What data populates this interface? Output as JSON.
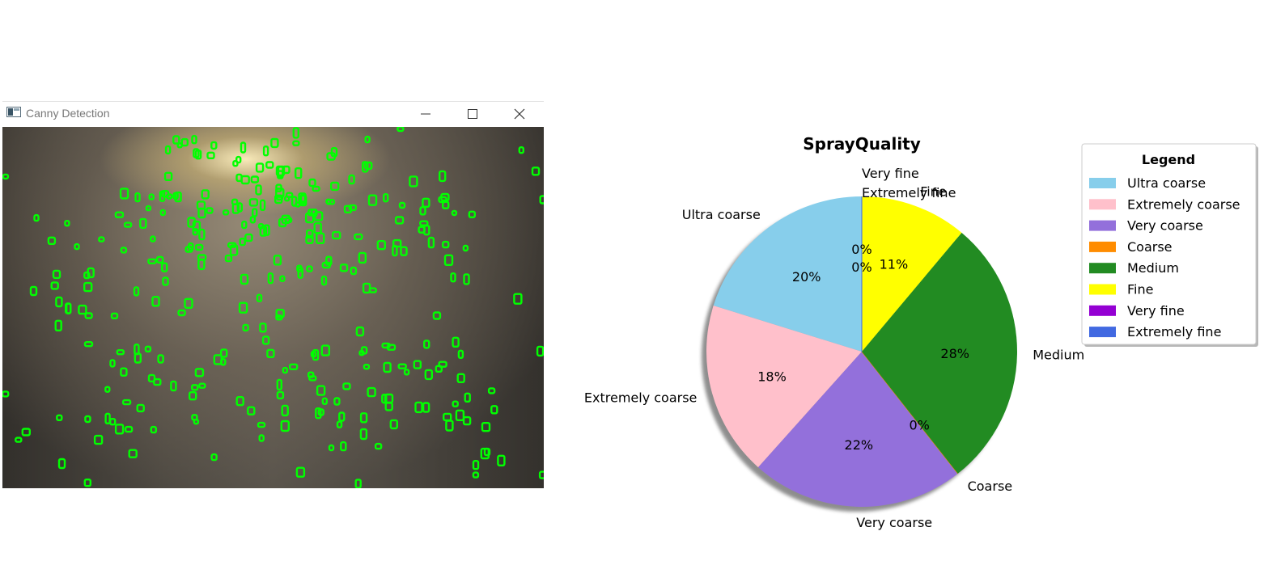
{
  "window": {
    "title": "Canny Detection",
    "minimize_icon": "minimize-icon",
    "maximize_icon": "maximize-icon",
    "close_icon": "close-icon",
    "canvas": {
      "description_icon": "spray-image",
      "detection_color": "#00ff00"
    }
  },
  "chart_data": {
    "type": "pie",
    "title": "SprayQuality",
    "categories": [
      "Ultra coarse",
      "Extremely coarse",
      "Very coarse",
      "Coarse",
      "Medium",
      "Fine",
      "Very fine",
      "Extremely fine"
    ],
    "values": [
      20,
      18,
      22,
      0,
      28,
      11,
      0,
      0
    ],
    "percent_labels": [
      "20%",
      "18%",
      "22%",
      "0%",
      "28%",
      "11%",
      "0%",
      "0%"
    ],
    "colors": [
      "#87ceeb",
      "#ffc0cb",
      "#9370db",
      "#ff8c00",
      "#228b22",
      "#ffff00",
      "#9400d3",
      "#4169e1"
    ],
    "shadow": true,
    "start_angle": 90,
    "direction": "counterclockwise",
    "legend": {
      "title": "Legend",
      "placement": "upper-right",
      "entries": [
        "Ultra coarse",
        "Extremely coarse",
        "Very coarse",
        "Coarse",
        "Medium",
        "Fine",
        "Very fine",
        "Extremely fine"
      ]
    }
  }
}
